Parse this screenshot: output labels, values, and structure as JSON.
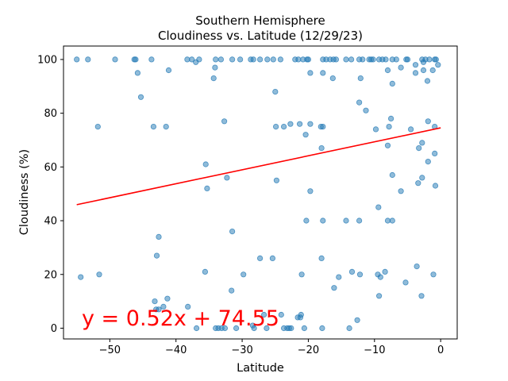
{
  "chart_data": {
    "type": "scatter",
    "title": "Southern Hemisphere",
    "subtitle": "Cloudiness vs. Latitude (12/29/23)",
    "xlabel": "Latitude",
    "ylabel": "Cloudiness (%)",
    "xlim": [
      -57,
      2.5
    ],
    "ylim": [
      -4,
      105
    ],
    "xticks": [
      -50,
      -40,
      -30,
      -20,
      -10,
      0
    ],
    "yticks": [
      0,
      20,
      40,
      60,
      80,
      100
    ],
    "grid": false,
    "point_color": "#1f77b4",
    "line_color": "#ff0000",
    "regression": {
      "slope": 0.52,
      "intercept": 74.55,
      "x_start": -55,
      "x_end": 0
    },
    "equation_label": "y = 0.52x + 74.55",
    "points": [
      [
        -55,
        100
      ],
      [
        -53.3,
        100
      ],
      [
        -49.2,
        100
      ],
      [
        -46.3,
        100
      ],
      [
        -46.1,
        100
      ],
      [
        -43.7,
        100
      ],
      [
        -38.3,
        100
      ],
      [
        -37.6,
        100
      ],
      [
        -37,
        99
      ],
      [
        -36.5,
        100
      ],
      [
        -34,
        100
      ],
      [
        -33.2,
        100
      ],
      [
        -31.5,
        100
      ],
      [
        -30.3,
        100
      ],
      [
        -28.7,
        100
      ],
      [
        -28.3,
        100
      ],
      [
        -27.3,
        100
      ],
      [
        -26.2,
        100
      ],
      [
        -25.3,
        100
      ],
      [
        -24.2,
        100
      ],
      [
        -22,
        100
      ],
      [
        -21.5,
        100
      ],
      [
        -20.8,
        100
      ],
      [
        -20.2,
        100
      ],
      [
        -20,
        100
      ],
      [
        -17.8,
        100
      ],
      [
        -17.3,
        100
      ],
      [
        -16.7,
        100
      ],
      [
        -16.2,
        100
      ],
      [
        -15.8,
        100
      ],
      [
        -14.3,
        100
      ],
      [
        -13.5,
        100
      ],
      [
        -12.3,
        100
      ],
      [
        -11.8,
        100
      ],
      [
        -10.8,
        100
      ],
      [
        -10.5,
        100
      ],
      [
        -10.2,
        100
      ],
      [
        -9.3,
        100
      ],
      [
        -8.8,
        100
      ],
      [
        -8.3,
        100
      ],
      [
        -7.3,
        100
      ],
      [
        -6.7,
        100
      ],
      [
        -5.2,
        100
      ],
      [
        -5,
        100
      ],
      [
        -2.8,
        100
      ],
      [
        -2.3,
        100
      ],
      [
        -1.7,
        100
      ],
      [
        -0.9,
        100
      ],
      [
        -0.7,
        100
      ],
      [
        -0.4,
        98
      ],
      [
        -2.6,
        99
      ],
      [
        -3.8,
        98
      ],
      [
        -6,
        97
      ],
      [
        -7.3,
        91
      ],
      [
        -8,
        96
      ],
      [
        -16.3,
        93
      ],
      [
        -12.1,
        93
      ],
      [
        -19.7,
        95
      ],
      [
        -17.8,
        95
      ],
      [
        -2,
        92
      ],
      [
        -3.8,
        95
      ],
      [
        -2.6,
        96
      ],
      [
        -1.2,
        96
      ],
      [
        -45.8,
        95
      ],
      [
        -41.1,
        96
      ],
      [
        -34.1,
        97
      ],
      [
        -34.3,
        93
      ],
      [
        -25,
        88
      ],
      [
        -45.3,
        86
      ],
      [
        -12.3,
        84
      ],
      [
        -11.3,
        81
      ],
      [
        -7.5,
        78
      ],
      [
        -32.7,
        77
      ],
      [
        -1.9,
        77
      ],
      [
        -51.8,
        75
      ],
      [
        -43.4,
        75
      ],
      [
        -41.5,
        75
      ],
      [
        -24.9,
        75
      ],
      [
        -23.7,
        75
      ],
      [
        -22.7,
        76
      ],
      [
        -21.3,
        76
      ],
      [
        -19.7,
        76
      ],
      [
        -17.8,
        75
      ],
      [
        -18.1,
        75
      ],
      [
        -9.8,
        74
      ],
      [
        -7.8,
        75
      ],
      [
        -4.5,
        74
      ],
      [
        -0.9,
        75
      ],
      [
        -20.4,
        72
      ],
      [
        -2.8,
        69
      ],
      [
        -3.3,
        67
      ],
      [
        -18,
        67
      ],
      [
        -8,
        68
      ],
      [
        -0.9,
        65
      ],
      [
        -1.9,
        62
      ],
      [
        -35.5,
        61
      ],
      [
        -32.3,
        56
      ],
      [
        -24.8,
        55
      ],
      [
        -7.3,
        57
      ],
      [
        -2.8,
        56
      ],
      [
        -3.4,
        54
      ],
      [
        -0.8,
        53
      ],
      [
        -35.3,
        52
      ],
      [
        -19.7,
        51
      ],
      [
        -6,
        51
      ],
      [
        -9.4,
        45
      ],
      [
        -20.3,
        40
      ],
      [
        -17.8,
        40
      ],
      [
        -14.3,
        40
      ],
      [
        -12.3,
        40
      ],
      [
        -8,
        40
      ],
      [
        -7.3,
        40
      ],
      [
        -42.6,
        34
      ],
      [
        -31.5,
        36
      ],
      [
        -42.9,
        27
      ],
      [
        -27.3,
        26
      ],
      [
        -25.4,
        26
      ],
      [
        -18,
        26
      ],
      [
        -3.6,
        23
      ],
      [
        -35.6,
        21
      ],
      [
        -13.4,
        21
      ],
      [
        -8.4,
        21
      ],
      [
        -51.6,
        20
      ],
      [
        -29.8,
        20
      ],
      [
        -21,
        20
      ],
      [
        -12.2,
        20
      ],
      [
        -9.5,
        20
      ],
      [
        -1.1,
        20
      ],
      [
        -54.4,
        19
      ],
      [
        -15.4,
        19
      ],
      [
        -9.1,
        19
      ],
      [
        -5.3,
        17
      ],
      [
        -16.1,
        15
      ],
      [
        -31.6,
        14
      ],
      [
        -9.3,
        12
      ],
      [
        -2.9,
        12
      ],
      [
        -41.3,
        11
      ],
      [
        -43.2,
        10
      ],
      [
        -38.2,
        8
      ],
      [
        -41.9,
        8
      ],
      [
        -43,
        7
      ],
      [
        -42.6,
        7
      ],
      [
        -26.7,
        5
      ],
      [
        -24.1,
        5
      ],
      [
        -21.1,
        5
      ],
      [
        -21.6,
        4
      ],
      [
        -21.2,
        4
      ],
      [
        -12.6,
        3
      ],
      [
        -28.4,
        1
      ],
      [
        -33.6,
        0
      ],
      [
        -34,
        0
      ],
      [
        -33.1,
        0
      ],
      [
        -32.6,
        0
      ],
      [
        -36.9,
        0
      ],
      [
        -30.9,
        0
      ],
      [
        -28.2,
        0
      ],
      [
        -26.3,
        0
      ],
      [
        -23.7,
        0
      ],
      [
        -23.2,
        0
      ],
      [
        -22.9,
        0
      ],
      [
        -22.6,
        0
      ],
      [
        -20.6,
        0
      ],
      [
        -17.9,
        0
      ],
      [
        -13.8,
        0
      ]
    ]
  }
}
